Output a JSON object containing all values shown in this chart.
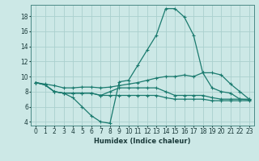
{
  "xlabel": "Humidex (Indice chaleur)",
  "x": [
    0,
    1,
    2,
    3,
    4,
    5,
    6,
    7,
    8,
    9,
    10,
    11,
    12,
    13,
    14,
    15,
    16,
    17,
    18,
    19,
    20,
    21,
    22,
    23
  ],
  "line1": [
    9.2,
    8.9,
    8.0,
    7.8,
    7.2,
    6.0,
    4.8,
    4.0,
    3.8,
    9.3,
    9.5,
    11.5,
    13.5,
    15.5,
    19.0,
    19.0,
    17.9,
    15.5,
    10.5,
    8.5,
    8.0,
    7.8,
    7.0,
    6.9
  ],
  "line2": [
    9.2,
    8.9,
    8.0,
    7.8,
    7.8,
    7.8,
    7.8,
    7.5,
    8.0,
    8.5,
    8.5,
    8.5,
    8.5,
    8.5,
    8.0,
    7.5,
    7.5,
    7.5,
    7.5,
    7.2,
    7.0,
    7.0,
    7.0,
    7.0
  ],
  "line3": [
    9.2,
    9.0,
    8.8,
    8.5,
    8.5,
    8.6,
    8.6,
    8.5,
    8.6,
    8.8,
    9.0,
    9.2,
    9.5,
    9.8,
    10.0,
    10.0,
    10.2,
    10.0,
    10.5,
    10.5,
    10.2,
    9.0,
    8.0,
    7.0
  ],
  "line4": [
    9.2,
    8.9,
    8.0,
    7.8,
    7.8,
    7.8,
    7.8,
    7.5,
    7.5,
    7.5,
    7.5,
    7.5,
    7.5,
    7.5,
    7.2,
    7.0,
    7.0,
    7.0,
    7.0,
    6.8,
    6.8,
    6.8,
    6.8,
    6.8
  ],
  "line_color": "#1a7a6e",
  "bg_color": "#cce8e6",
  "grid_color": "#aad0ce",
  "xlim": [
    -0.5,
    23.5
  ],
  "ylim": [
    3.5,
    19.5
  ],
  "yticks": [
    4,
    6,
    8,
    10,
    12,
    14,
    16,
    18
  ],
  "xtick_labels": [
    "0",
    "1",
    "2",
    "3",
    "4",
    "5",
    "6",
    "7",
    "8",
    "9",
    "10",
    "11",
    "12",
    "13",
    "14",
    "15",
    "16",
    "17",
    "18",
    "19",
    "20",
    "21",
    "22",
    "23"
  ],
  "marker": "+"
}
